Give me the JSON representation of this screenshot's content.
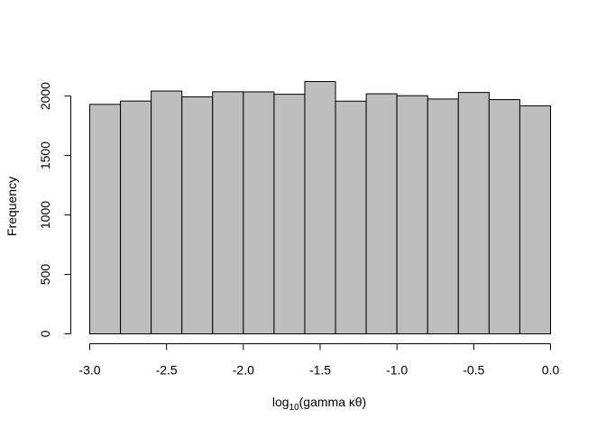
{
  "chart_data": {
    "type": "bar",
    "histogram": true,
    "title": "",
    "xlabel": {
      "prefix": "log",
      "subscript": "10",
      "suffix": "(gamma κθ)"
    },
    "ylabel": "Frequency",
    "bin_edges": [
      -3.0,
      -2.8,
      -2.6,
      -2.4,
      -2.2,
      -2.0,
      -1.8,
      -1.6,
      -1.4,
      -1.2,
      -1.0,
      -0.8,
      -0.6,
      -0.4,
      -0.2,
      0.0
    ],
    "values": [
      1930,
      1958,
      2042,
      1993,
      2036,
      2035,
      2015,
      2122,
      1957,
      2019,
      2003,
      1975,
      2030,
      1970,
      1918
    ],
    "xlim": [
      -3.0,
      0.0
    ],
    "ylim": [
      0,
      2122
    ],
    "x_ticks": [
      -3.0,
      -2.5,
      -2.0,
      -1.5,
      -1.0,
      -0.5,
      0.0
    ],
    "x_tick_labels": [
      "-3.0",
      "-2.5",
      "-2.0",
      "-1.5",
      "-1.0",
      "-0.5",
      "0.0"
    ],
    "y_ticks": [
      0,
      500,
      1000,
      1500,
      2000
    ],
    "y_tick_labels": [
      "0",
      "500",
      "1000",
      "1500",
      "2000"
    ],
    "grid": false,
    "legend": "none",
    "colors": {
      "bar_fill": "#bebebe",
      "bar_stroke": "#000000",
      "axis": "#000000",
      "background": "#ffffff"
    }
  }
}
